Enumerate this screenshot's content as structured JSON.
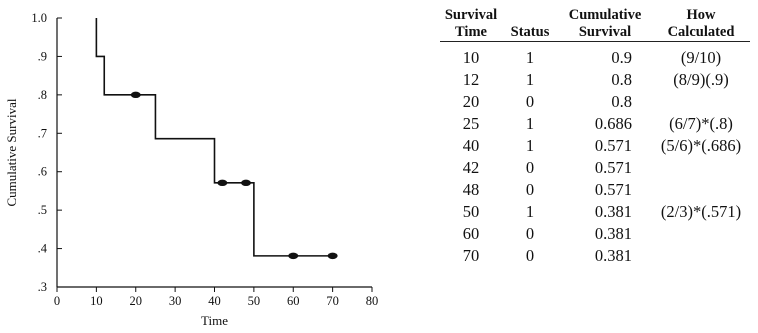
{
  "chart_data": {
    "type": "step",
    "xlabel": "Time",
    "ylabel": "Cumulative Survival",
    "xlim": [
      0,
      80
    ],
    "ylim": [
      0.3,
      1.0
    ],
    "xticks": [
      "0",
      "10",
      "20",
      "30",
      "40",
      "50",
      "60",
      "70",
      "80"
    ],
    "yticks": [
      ".3",
      ".4",
      ".5",
      ".6",
      ".7",
      ".8",
      ".9",
      "1.0"
    ],
    "step_x": [
      10,
      10,
      12,
      12,
      25,
      25,
      40,
      40,
      50,
      50,
      70
    ],
    "step_y": [
      1.0,
      0.9,
      0.9,
      0.8,
      0.8,
      0.686,
      0.686,
      0.571,
      0.571,
      0.381,
      0.381
    ],
    "censored_points": [
      {
        "x": 20,
        "y": 0.8
      },
      {
        "x": 42,
        "y": 0.571
      },
      {
        "x": 48,
        "y": 0.571
      },
      {
        "x": 60,
        "y": 0.381
      },
      {
        "x": 70,
        "y": 0.381
      }
    ],
    "line_color": "#111111",
    "grid": false
  },
  "table": {
    "headers": [
      {
        "line1": "Survival",
        "line2": "Time"
      },
      {
        "line1": "",
        "line2": "Status"
      },
      {
        "line1": "Cumulative",
        "line2": "Survival"
      },
      {
        "line1": "How",
        "line2": "Calculated"
      }
    ],
    "rows": [
      {
        "time": "10",
        "status": "1",
        "cum": "0.9",
        "how": "(9/10)"
      },
      {
        "time": "12",
        "status": "1",
        "cum": "0.8",
        "how": "(8/9)(.9)"
      },
      {
        "time": "20",
        "status": "0",
        "cum": "0.8",
        "how": ""
      },
      {
        "time": "25",
        "status": "1",
        "cum": "0.686",
        "how": "(6/7)*(.8)"
      },
      {
        "time": "40",
        "status": "1",
        "cum": "0.571",
        "how": "(5/6)*(.686)"
      },
      {
        "time": "42",
        "status": "0",
        "cum": "0.571",
        "how": ""
      },
      {
        "time": "48",
        "status": "0",
        "cum": "0.571",
        "how": ""
      },
      {
        "time": "50",
        "status": "1",
        "cum": "0.381",
        "how": "(2/3)*(.571)"
      },
      {
        "time": "60",
        "status": "0",
        "cum": "0.381",
        "how": ""
      },
      {
        "time": "70",
        "status": "0",
        "cum": "0.381",
        "how": ""
      }
    ]
  }
}
